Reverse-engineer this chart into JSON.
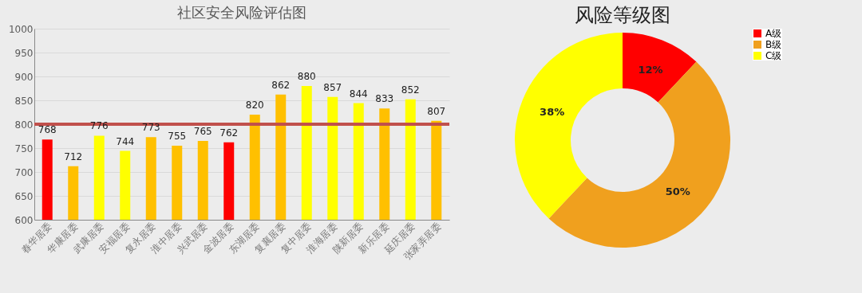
{
  "chart_data": [
    {
      "type": "bar",
      "title": "社区安全风险评估图",
      "categories": [
        "春华居委",
        "华康居委",
        "武康居委",
        "安福居委",
        "复永居委",
        "淮中居委",
        "兴武居委",
        "金波居委",
        "东湖居委",
        "复襄居委",
        "复中居委",
        "淮海居委",
        "陕新居委",
        "新乐居委",
        "延庆居委",
        "张家弄居委"
      ],
      "values": [
        768,
        712,
        776,
        744,
        773,
        755,
        765,
        762,
        820,
        862,
        880,
        857,
        844,
        833,
        852,
        807
      ],
      "colors": [
        "#ff0000",
        "#ffc000",
        "#ffff00",
        "#ffff00",
        "#ffc000",
        "#ffc000",
        "#ffc000",
        "#ff0000",
        "#ffc000",
        "#ffc000",
        "#ffff00",
        "#ffff00",
        "#ffff00",
        "#ffc000",
        "#ffff00",
        "#ffc000"
      ],
      "ylim": [
        600,
        1000
      ],
      "yticks": [
        600,
        650,
        700,
        750,
        800,
        850,
        900,
        950,
        1000
      ],
      "grid": "y",
      "data_labels": true,
      "ref_lines": [
        {
          "axis": "y",
          "value": 800,
          "color": "#c0504d"
        }
      ]
    },
    {
      "type": "donut",
      "title": "风险等级图",
      "categories": [
        "A级",
        "B级",
        "C级"
      ],
      "values": [
        12,
        50,
        38
      ],
      "colors": [
        "#ff0000",
        "#f0a01e",
        "#ffff00"
      ],
      "value_labels": [
        "12%",
        "50%",
        "38%"
      ],
      "legend": "right"
    }
  ]
}
